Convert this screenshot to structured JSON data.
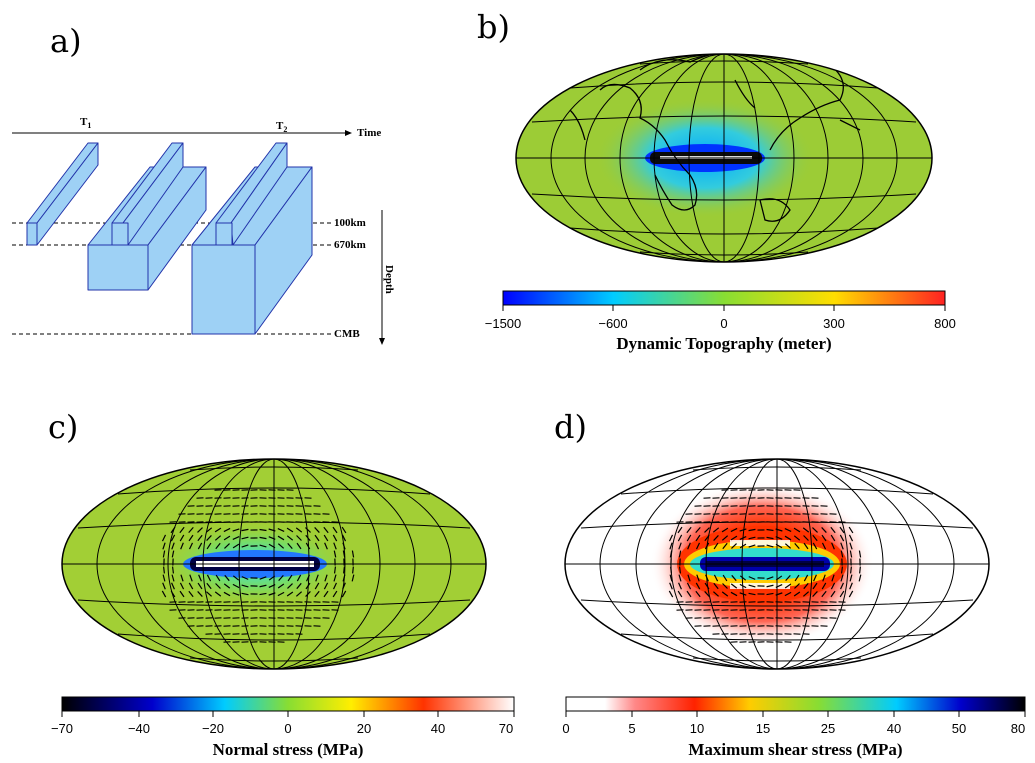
{
  "panels": {
    "a": {
      "label": "a)",
      "t1": "T",
      "t1_sub": "1",
      "t2": "T",
      "t2_sub": "2",
      "time": "Time",
      "depth_100": "100km",
      "depth_670": "670km",
      "depth_cmb": "CMB",
      "depth_axis": "Depth"
    },
    "b": {
      "label": "b)",
      "colorbar": {
        "title": "Dynamic Topography (meter)",
        "ticks": [
          "−1500",
          "−600",
          "0",
          "300",
          "800"
        ]
      }
    },
    "c": {
      "label": "c)",
      "colorbar": {
        "title": "Normal stress (MPa)",
        "ticks": [
          "−70",
          "−40",
          "−20",
          "0",
          "20",
          "40",
          "70"
        ]
      }
    },
    "d": {
      "label": "d)",
      "colorbar": {
        "title": "Maximum shear stress (MPa)",
        "ticks": [
          "0",
          "5",
          "10",
          "15",
          "25",
          "40",
          "50",
          "80"
        ]
      }
    }
  },
  "colors": {
    "slab_fill": "#9ed1f5",
    "slab_stroke": "#2233aa",
    "map_background_b": "#9ccc36",
    "map_background_c": "#a2cf35",
    "map_background_d": "#ffffff"
  }
}
